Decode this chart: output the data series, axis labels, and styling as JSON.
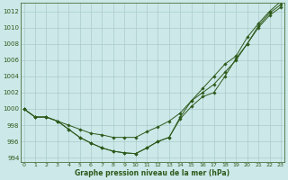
{
  "x": [
    0,
    1,
    2,
    3,
    4,
    5,
    6,
    7,
    8,
    9,
    10,
    11,
    12,
    13,
    14,
    15,
    16,
    17,
    18,
    19,
    20,
    21,
    22,
    23
  ],
  "line1": [
    1000,
    999,
    999,
    998.5,
    998.0,
    997.5,
    997.0,
    996.8,
    996.5,
    996.5,
    996.5,
    997.2,
    997.8,
    998.5,
    999.5,
    1001.0,
    1002.0,
    1003.0,
    1004.5,
    1006.0,
    1008.0,
    1010.2,
    1011.8,
    1012.8
  ],
  "line2": [
    1000,
    999,
    999,
    998.5,
    997.5,
    996.5,
    995.8,
    995.2,
    994.8,
    994.6,
    994.5,
    995.2,
    996.0,
    996.5,
    998.8,
    1000.3,
    1001.5,
    1002.0,
    1004.0,
    1006.2,
    1008.0,
    1010.0,
    1011.5,
    1012.5
  ],
  "line3": [
    1000,
    999,
    999,
    998.5,
    997.5,
    996.5,
    995.8,
    995.2,
    994.8,
    994.6,
    994.5,
    995.2,
    996.0,
    996.5,
    999.0,
    1001.0,
    1002.5,
    1004.0,
    1005.5,
    1006.5,
    1008.8,
    1010.5,
    1012.0,
    1013.2
  ],
  "line_color": "#2d5a1b",
  "bg_color": "#cce8e8",
  "grid_color": "#aacccc",
  "xlabel": "Graphe pression niveau de la mer (hPa)",
  "ylim": [
    993.5,
    1013.0
  ],
  "xlim": [
    -0.3,
    23.3
  ],
  "yticks": [
    994,
    996,
    998,
    1000,
    1002,
    1004,
    1006,
    1008,
    1010,
    1012
  ],
  "xticks": [
    0,
    1,
    2,
    3,
    4,
    5,
    6,
    7,
    8,
    9,
    10,
    11,
    12,
    13,
    14,
    15,
    16,
    17,
    18,
    19,
    20,
    21,
    22,
    23
  ]
}
